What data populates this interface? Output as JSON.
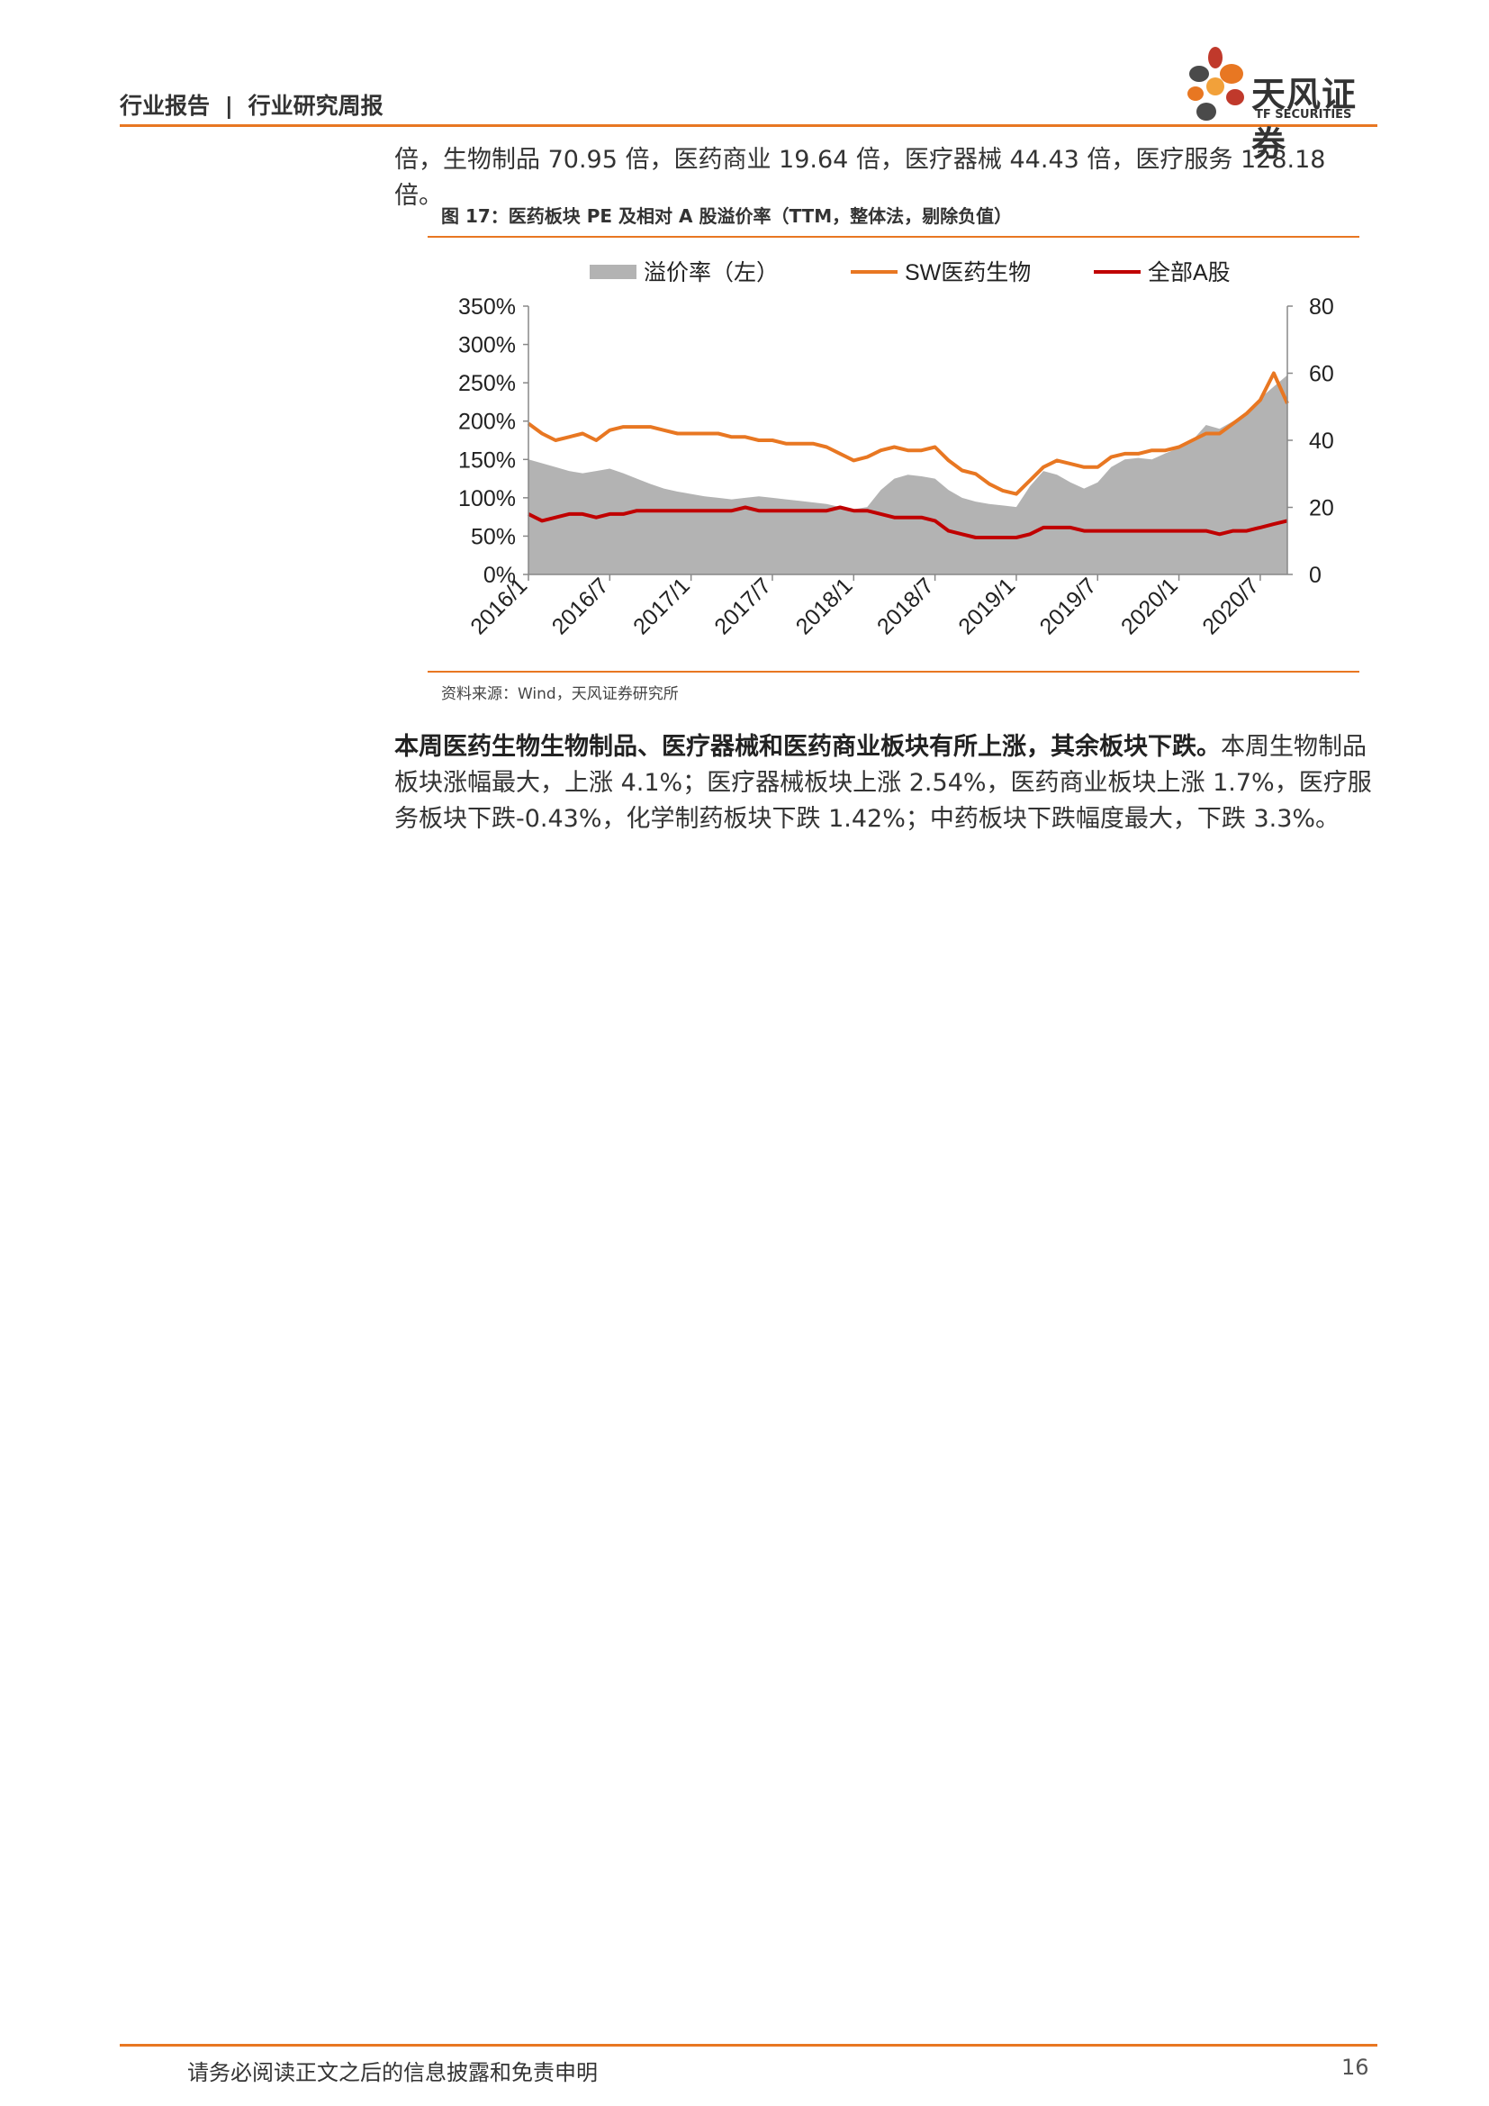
{
  "header": {
    "report_type": "行业报告",
    "separator": "|",
    "report_subtype": "行业研究周报",
    "logo_name": "天风证券",
    "logo_en": "TF SECURITIES"
  },
  "intro": {
    "text": "倍，生物制品 70.95 倍，医药商业 19.64 倍，医疗器械 44.43 倍，医疗服务 128.18 倍。"
  },
  "figure": {
    "title": "图 17：医药板块 PE 及相对 A 股溢价率（TTM，整体法，剔除负值）",
    "source": "资料来源：Wind，天风证券研究所"
  },
  "chart_data": {
    "type": "area",
    "legend": [
      "溢价率（左）",
      "SW医药生物",
      "全部A股"
    ],
    "legend_position": "top",
    "x_ticks": [
      "2016/1",
      "2016/7",
      "2017/1",
      "2017/7",
      "2018/1",
      "2018/7",
      "2019/1",
      "2019/7",
      "2020/1",
      "2020/7"
    ],
    "x": [
      "2016/1",
      "2016/2",
      "2016/3",
      "2016/4",
      "2016/5",
      "2016/6",
      "2016/7",
      "2016/8",
      "2016/9",
      "2016/10",
      "2016/11",
      "2016/12",
      "2017/1",
      "2017/2",
      "2017/3",
      "2017/4",
      "2017/5",
      "2017/6",
      "2017/7",
      "2017/8",
      "2017/9",
      "2017/10",
      "2017/11",
      "2017/12",
      "2018/1",
      "2018/2",
      "2018/3",
      "2018/4",
      "2018/5",
      "2018/6",
      "2018/7",
      "2018/8",
      "2018/9",
      "2018/10",
      "2018/11",
      "2018/12",
      "2019/1",
      "2019/2",
      "2019/3",
      "2019/4",
      "2019/5",
      "2019/6",
      "2019/7",
      "2019/8",
      "2019/9",
      "2019/10",
      "2019/11",
      "2019/12",
      "2020/1",
      "2020/2",
      "2020/3",
      "2020/4",
      "2020/5",
      "2020/6",
      "2020/7",
      "2020/8",
      "2020/9"
    ],
    "y_left_ticks": [
      "0%",
      "50%",
      "100%",
      "150%",
      "200%",
      "250%",
      "300%",
      "350%"
    ],
    "y_left_range": [
      0,
      350
    ],
    "y_right_ticks": [
      "0",
      "20",
      "40",
      "60",
      "80"
    ],
    "y_right_range": [
      0,
      80
    ],
    "series": [
      {
        "name": "溢价率（左）",
        "axis": "left",
        "color": "#b3b3b3",
        "style": "area",
        "values": [
          150,
          145,
          140,
          135,
          132,
          135,
          138,
          132,
          125,
          118,
          112,
          108,
          105,
          102,
          100,
          98,
          100,
          102,
          100,
          98,
          96,
          94,
          92,
          88,
          85,
          88,
          110,
          125,
          130,
          128,
          125,
          110,
          100,
          95,
          92,
          90,
          88,
          115,
          135,
          130,
          120,
          112,
          120,
          140,
          150,
          152,
          150,
          158,
          165,
          175,
          195,
          190,
          200,
          210,
          230,
          245,
          260
        ]
      },
      {
        "name": "SW医药生物",
        "axis": "right",
        "color": "#e87722",
        "style": "line",
        "values": [
          45,
          42,
          40,
          41,
          42,
          40,
          43,
          44,
          44,
          44,
          43,
          42,
          42,
          42,
          42,
          41,
          41,
          40,
          40,
          39,
          39,
          39,
          38,
          36,
          34,
          35,
          37,
          38,
          37,
          37,
          38,
          34,
          31,
          30,
          27,
          25,
          24,
          28,
          32,
          34,
          33,
          32,
          32,
          35,
          36,
          36,
          37,
          37,
          38,
          40,
          42,
          42,
          45,
          48,
          52,
          60,
          51
        ]
      },
      {
        "name": "全部A股",
        "axis": "right",
        "color": "#c00000",
        "style": "line",
        "values": [
          18,
          16,
          17,
          18,
          18,
          17,
          18,
          18,
          19,
          19,
          19,
          19,
          19,
          19,
          19,
          19,
          20,
          19,
          19,
          19,
          19,
          19,
          19,
          20,
          19,
          19,
          18,
          17,
          17,
          17,
          16,
          13,
          12,
          11,
          11,
          11,
          11,
          12,
          14,
          14,
          14,
          13,
          13,
          13,
          13,
          13,
          13,
          13,
          13,
          13,
          13,
          12,
          13,
          13,
          14,
          15,
          16
        ]
      }
    ],
    "grid": false
  },
  "body": {
    "bold_text": "本周医药生物生物制品、医疗器械和医药商业板块有所上涨，其余板块下跌。",
    "text": "本周生物制品板块涨幅最大，上涨 4.1%；医疗器械板块上涨 2.54%，医药商业板块上涨 1.7%，医疗服务板块下跌-0.43%，化学制药板块下跌 1.42%；中药板块下跌幅度最大，下跌 3.3%。"
  },
  "footer": {
    "disclaimer": "请务必阅读正文之后的信息披露和免责申明",
    "page": "16"
  },
  "colors": {
    "accent": "#e87722",
    "logo_red": "#c0392b",
    "logo_orange": "#e87722",
    "logo_dark": "#4a4a4a"
  }
}
